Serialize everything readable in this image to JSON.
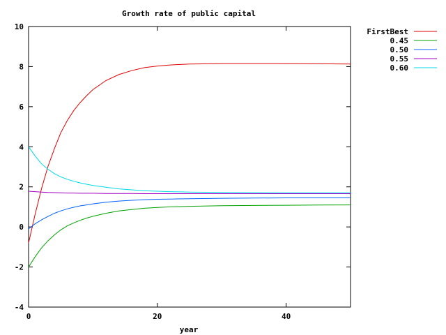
{
  "chart_data": {
    "type": "line",
    "title": "Growth rate of public capital",
    "xlabel": "year",
    "ylabel": "",
    "xlim": [
      0,
      50
    ],
    "ylim": [
      -4,
      10
    ],
    "x_ticks": [
      "0",
      "20",
      "40"
    ],
    "x_tick_values": [
      0,
      20,
      40
    ],
    "y_ticks": [
      "-4",
      "-2",
      "0",
      "2",
      "4",
      "6",
      "8",
      "10"
    ],
    "y_tick_values": [
      -4,
      -2,
      0,
      2,
      4,
      6,
      8,
      10
    ],
    "grid": false,
    "legend_position": "top-right",
    "x": [
      0,
      1,
      2,
      3,
      4,
      5,
      6,
      7,
      8,
      9,
      10,
      12,
      14,
      16,
      18,
      20,
      22,
      25,
      30,
      35,
      40,
      45,
      50
    ],
    "series": [
      {
        "name": "FirstBest",
        "color": "#e00000",
        "values": [
          -0.8,
          0.6,
          1.9,
          3.0,
          3.9,
          4.7,
          5.3,
          5.8,
          6.2,
          6.55,
          6.85,
          7.3,
          7.6,
          7.8,
          7.95,
          8.03,
          8.08,
          8.13,
          8.15,
          8.15,
          8.15,
          8.14,
          8.13
        ]
      },
      {
        "name": "0.45",
        "color": "#00a000",
        "values": [
          -2.0,
          -1.5,
          -1.05,
          -0.7,
          -0.4,
          -0.15,
          0.05,
          0.2,
          0.33,
          0.44,
          0.53,
          0.68,
          0.8,
          0.87,
          0.93,
          0.97,
          1.0,
          1.03,
          1.06,
          1.07,
          1.08,
          1.09,
          1.1
        ]
      },
      {
        "name": "0.50",
        "color": "#0060ff",
        "values": [
          -0.1,
          0.15,
          0.35,
          0.52,
          0.68,
          0.8,
          0.9,
          0.98,
          1.05,
          1.1,
          1.15,
          1.23,
          1.29,
          1.33,
          1.36,
          1.38,
          1.39,
          1.41,
          1.43,
          1.44,
          1.45,
          1.45,
          1.45
        ]
      },
      {
        "name": "0.55",
        "color": "#a000c0",
        "values": [
          1.78,
          1.76,
          1.74,
          1.72,
          1.71,
          1.7,
          1.69,
          1.69,
          1.68,
          1.68,
          1.68,
          1.67,
          1.67,
          1.67,
          1.66,
          1.66,
          1.66,
          1.66,
          1.66,
          1.66,
          1.66,
          1.66,
          1.66
        ]
      },
      {
        "name": "0.60",
        "color": "#00d8e8",
        "values": [
          4.0,
          3.55,
          3.15,
          2.88,
          2.66,
          2.5,
          2.38,
          2.28,
          2.2,
          2.13,
          2.07,
          1.98,
          1.9,
          1.85,
          1.81,
          1.78,
          1.76,
          1.74,
          1.72,
          1.71,
          1.7,
          1.7,
          1.7
        ]
      }
    ]
  }
}
